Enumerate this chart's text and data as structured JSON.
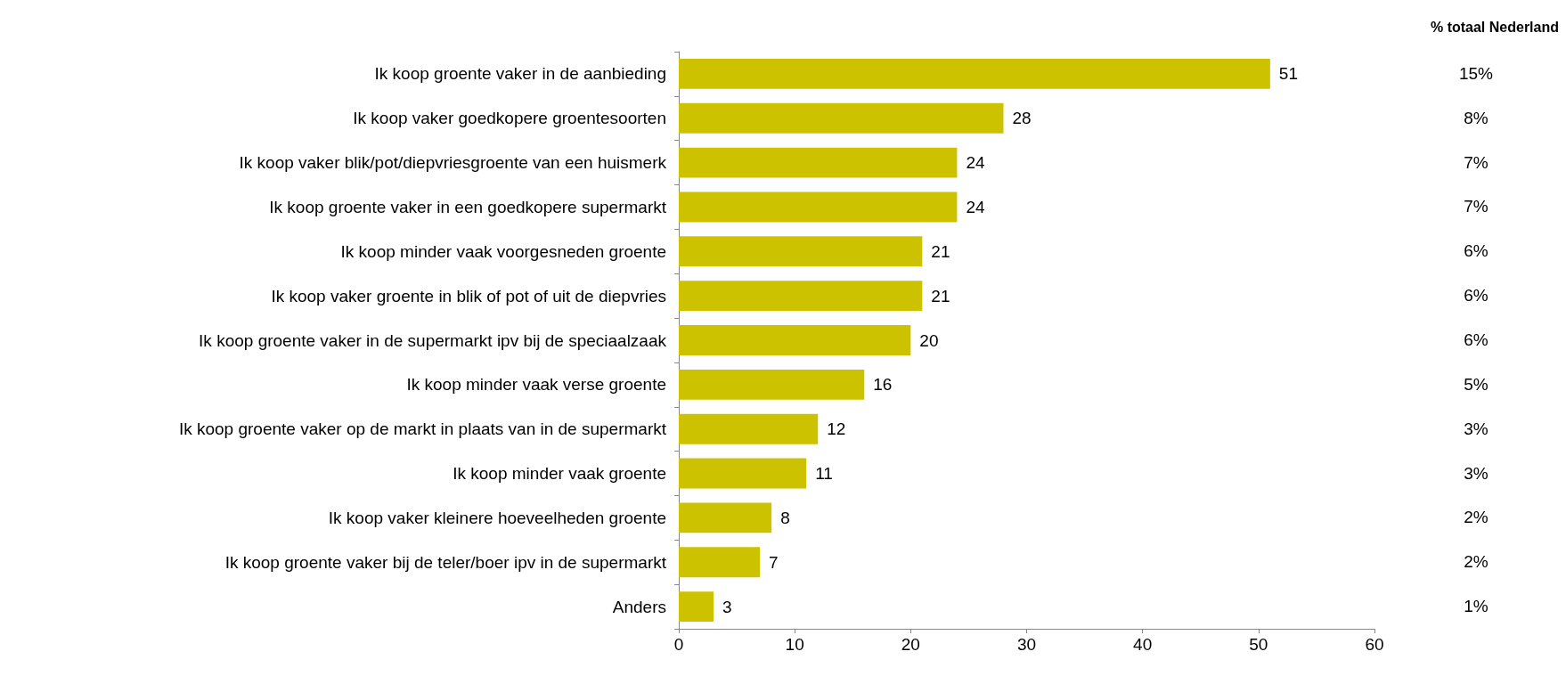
{
  "chart_data": {
    "type": "bar",
    "orientation": "horizontal",
    "categories": [
      "Ik koop groente vaker in de aanbieding",
      "Ik koop vaker goedkopere groentesoorten",
      "Ik koop vaker blik/pot/diepvriesgroente van een huismerk",
      "Ik koop groente vaker in een goedkopere supermarkt",
      "Ik koop minder vaak voorgesneden groente",
      "Ik koop vaker groente in blik of pot of uit de diepvries",
      "Ik koop groente vaker in de supermarkt ipv bij de speciaalzaak",
      "Ik koop minder vaak verse groente",
      "Ik koop groente vaker op de markt in plaats van in de supermarkt",
      "Ik koop minder vaak groente",
      "Ik koop vaker kleinere hoeveelheden groente",
      "Ik koop groente vaker bij de teler/boer ipv in de supermarkt",
      "Anders"
    ],
    "values": [
      51,
      28,
      24,
      24,
      21,
      21,
      20,
      16,
      12,
      11,
      8,
      7,
      3
    ],
    "color": "#ccc200",
    "xlim": [
      0,
      60
    ],
    "xticks": [
      0,
      10,
      20,
      30,
      40,
      50,
      60
    ],
    "grid": false,
    "data_labels": true,
    "annotations": [
      "% totaal Nederland",
      "15%",
      "8%",
      "7%",
      "7%",
      "6%",
      "6%",
      "6%",
      "5%",
      "3%",
      "3%",
      "2%",
      "2%",
      "1%"
    ]
  }
}
